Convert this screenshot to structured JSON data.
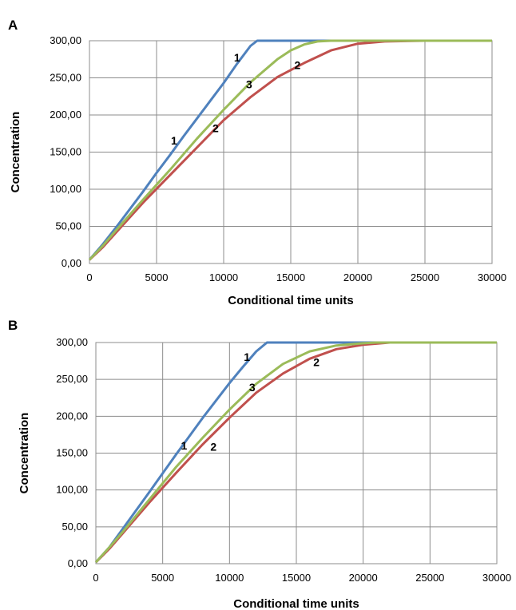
{
  "chart_data": [
    {
      "panel_label": "A",
      "type": "line",
      "xlabel": "Conditional time units",
      "ylabel": "Concentration",
      "xlim": [
        0,
        30000
      ],
      "ylim": [
        0,
        300
      ],
      "xticks": [
        "0",
        "5000",
        "10000",
        "15000",
        "20000",
        "25000",
        "30000"
      ],
      "yticks": [
        "0,00",
        "50,00",
        "100,00",
        "150,00",
        "200,00",
        "250,00",
        "300,00"
      ],
      "grid": true,
      "legend": "none",
      "series": [
        {
          "color": "#4f81bd",
          "x": [
            0,
            1000,
            2000,
            3000,
            4000,
            5000,
            6000,
            7000,
            8000,
            9000,
            10000,
            11000,
            12000,
            12500,
            13000,
            20000,
            30000
          ],
          "y": [
            5,
            26,
            49,
            73,
            97,
            122,
            146,
            171,
            195,
            219,
            243,
            269,
            293,
            300,
            300,
            300,
            300
          ]
        },
        {
          "color": "#c0504d",
          "x": [
            0,
            1000,
            2000,
            4000,
            6000,
            8000,
            10000,
            12000,
            14000,
            16000,
            18000,
            20000,
            22000,
            25000,
            30000
          ],
          "y": [
            5,
            22,
            42,
            82,
            119,
            156,
            193,
            224,
            251,
            270,
            287,
            296,
            299,
            300,
            300
          ]
        },
        {
          "color": "#9bbb59",
          "x": [
            0,
            1000,
            2000,
            4000,
            6000,
            8000,
            10000,
            12000,
            14000,
            15000,
            16000,
            17000,
            18000,
            30000
          ],
          "y": [
            5,
            24,
            45,
            86,
            126,
            168,
            207,
            244,
            275,
            287,
            295,
            299,
            300,
            300
          ]
        }
      ],
      "annotations": [
        {
          "text": "1",
          "x": 6300,
          "y": 160
        },
        {
          "text": "1",
          "x": 11000,
          "y": 272
        },
        {
          "text": "2",
          "x": 9400,
          "y": 177
        },
        {
          "text": "2",
          "x": 15500,
          "y": 262
        },
        {
          "text": "3",
          "x": 11900,
          "y": 236
        }
      ]
    },
    {
      "panel_label": "B",
      "type": "line",
      "xlabel": "Conditional time units",
      "ylabel": "Concentration",
      "xlim": [
        0,
        30000
      ],
      "ylim": [
        0,
        300
      ],
      "xticks": [
        "0",
        "5000",
        "10000",
        "15000",
        "20000",
        "25000",
        "30000"
      ],
      "yticks": [
        "0,00",
        "50,00",
        "100,00",
        "150,00",
        "200,00",
        "250,00",
        "300,00"
      ],
      "grid": true,
      "legend": "none",
      "series": [
        {
          "color": "#4f81bd",
          "x": [
            0,
            1000,
            2000,
            4000,
            6000,
            8000,
            10000,
            11000,
            12000,
            12800,
            13500,
            30000
          ],
          "y": [
            2,
            22,
            47,
            97,
            148,
            198,
            245,
            267,
            288,
            300,
            300,
            300
          ]
        },
        {
          "color": "#c0504d",
          "x": [
            0,
            1000,
            2000,
            4000,
            6000,
            8000,
            10000,
            12000,
            14000,
            16000,
            18000,
            20000,
            22000,
            23000,
            30000
          ],
          "y": [
            2,
            20,
            41,
            83,
            123,
            162,
            198,
            232,
            258,
            278,
            291,
            297,
            300,
            300,
            300
          ]
        },
        {
          "color": "#9bbb59",
          "x": [
            0,
            1000,
            2000,
            4000,
            6000,
            8000,
            10000,
            12000,
            14000,
            16000,
            18000,
            20000,
            21000,
            30000
          ],
          "y": [
            2,
            22,
            43,
            87,
            131,
            171,
            209,
            244,
            271,
            288,
            296,
            299,
            300,
            300
          ]
        }
      ],
      "annotations": [
        {
          "text": "1",
          "x": 6600,
          "y": 155
        },
        {
          "text": "1",
          "x": 11300,
          "y": 275
        },
        {
          "text": "2",
          "x": 8800,
          "y": 153
        },
        {
          "text": "2",
          "x": 16500,
          "y": 268
        },
        {
          "text": "3",
          "x": 11700,
          "y": 234
        }
      ]
    }
  ]
}
